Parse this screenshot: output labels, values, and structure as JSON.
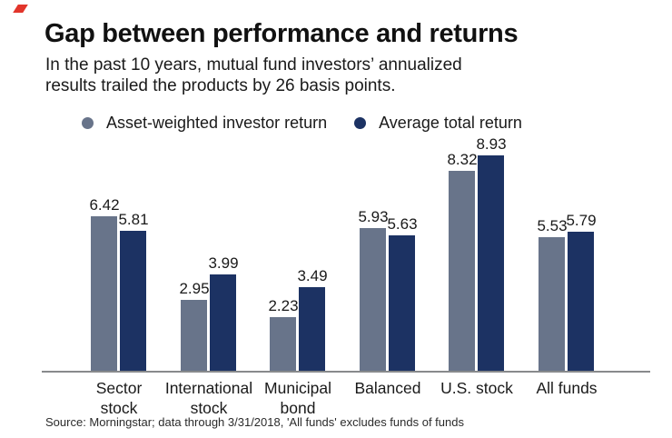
{
  "brand_mark": {
    "icon": "red-slash-icon",
    "color": "#e2352b"
  },
  "header": {
    "title": "Gap between performance and returns",
    "subtitle_line1": "In the past 10 years, mutual fund investors’ annualized",
    "subtitle_line2": "results trailed the products by 26 basis points."
  },
  "legend": {
    "items": [
      {
        "label": "Asset-weighted investor return",
        "color": "#68748a"
      },
      {
        "label": "Average total return",
        "color": "#1c3263"
      }
    ]
  },
  "chart_data": {
    "type": "bar",
    "title": "Gap between performance and returns",
    "subtitle": "In the past 10 years, mutual fund investors’ annualized results trailed the products by 26 basis points.",
    "categories": [
      "Sector stock",
      "International stock",
      "Municipal bond",
      "Balanced",
      "U.S. stock",
      "All funds"
    ],
    "category_lines": [
      [
        "Sector",
        "stock"
      ],
      [
        "International",
        "stock"
      ],
      [
        "Municipal",
        "bond"
      ],
      [
        "Balanced"
      ],
      [
        "U.S. stock"
      ],
      [
        "All funds"
      ]
    ],
    "series": [
      {
        "name": "Asset-weighted investor return",
        "color": "#68748a",
        "values": [
          6.42,
          2.95,
          2.23,
          5.93,
          8.32,
          5.53
        ]
      },
      {
        "name": "Average total return",
        "color": "#1c3263",
        "values": [
          5.81,
          3.99,
          3.49,
          5.63,
          8.93,
          5.79
        ]
      }
    ],
    "value_labels_shown": true,
    "xlabel": "",
    "ylabel": "",
    "ylim": [
      0,
      9.3
    ],
    "grid": false,
    "y_axis_shown": false,
    "legend_position": "top"
  },
  "footer": {
    "source": "Source: Morningstar; data through 3/31/2018, 'All funds' excludes funds of funds"
  }
}
